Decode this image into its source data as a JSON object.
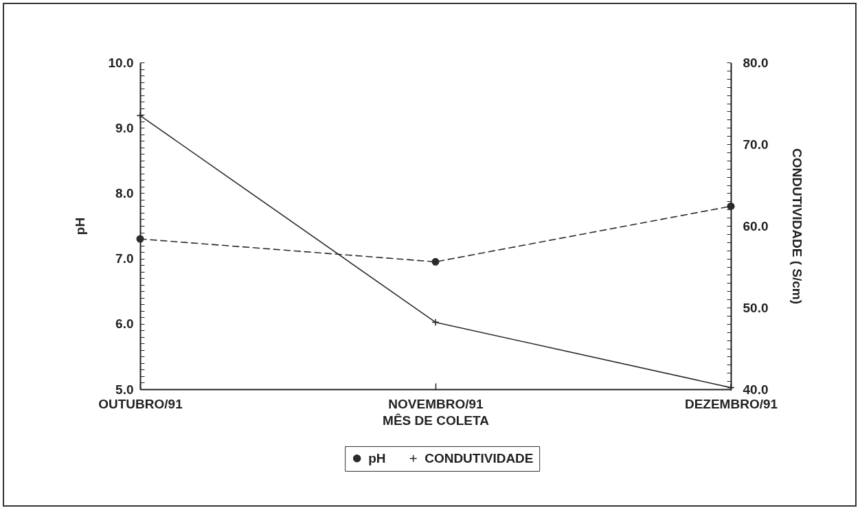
{
  "chart_data": {
    "type": "line",
    "xlabel": "MÊS DE COLETA",
    "ylabel": "pH",
    "y2label": "CONDUTIVIDADE ( S/cm)",
    "categories": [
      "OUTUBRO/91",
      "NOVEMBRO/91",
      "DEZEMBRO/91"
    ],
    "series": [
      {
        "name": "pH",
        "color": "#2b2b2b",
        "values": [
          7.3,
          6.95,
          7.8
        ],
        "marker": "circle",
        "line_style": "dashed"
      },
      {
        "name": "CONDUTIVIDADE",
        "color": "#2b2b2b",
        "values": [
          73.5,
          48.2,
          40.2
        ],
        "marker": "cross",
        "line_style": "solid",
        "axis": "y2"
      }
    ],
    "ylim": [
      5,
      10
    ],
    "yticks": [
      {
        "value": 5,
        "label": "5.0"
      },
      {
        "value": 5.1,
        "label": null
      },
      {
        "value": 5.2,
        "label": null
      },
      {
        "value": 5.3,
        "label": null
      },
      {
        "value": 5.4,
        "label": null
      },
      {
        "value": 5.5,
        "label": null
      },
      {
        "value": 5.6,
        "label": null
      },
      {
        "value": 5.7,
        "label": null
      },
      {
        "value": 5.8,
        "label": null
      },
      {
        "value": 5.9,
        "label": null
      },
      {
        "value": 6,
        "label": "6.0"
      },
      {
        "value": 6.1,
        "label": null
      },
      {
        "value": 6.2,
        "label": null
      },
      {
        "value": 6.3,
        "label": null
      },
      {
        "value": 6.4,
        "label": null
      },
      {
        "value": 6.5,
        "label": null
      },
      {
        "value": 6.6,
        "label": null
      },
      {
        "value": 6.7,
        "label": null
      },
      {
        "value": 6.8,
        "label": null
      },
      {
        "value": 6.9,
        "label": null
      },
      {
        "value": 7,
        "label": "7.0"
      },
      {
        "value": 7.1,
        "label": null
      },
      {
        "value": 7.2,
        "label": null
      },
      {
        "value": 7.3,
        "label": null
      },
      {
        "value": 7.4,
        "label": null
      },
      {
        "value": 7.5,
        "label": null
      },
      {
        "value": 7.6,
        "label": null
      },
      {
        "value": 7.7,
        "label": null
      },
      {
        "value": 7.8,
        "label": null
      },
      {
        "value": 7.9,
        "label": null
      },
      {
        "value": 8,
        "label": "8.0"
      },
      {
        "value": 8.1,
        "label": null
      },
      {
        "value": 8.2,
        "label": null
      },
      {
        "value": 8.3,
        "label": null
      },
      {
        "value": 8.4,
        "label": null
      },
      {
        "value": 8.5,
        "label": null
      },
      {
        "value": 8.6,
        "label": null
      },
      {
        "value": 8.7,
        "label": null
      },
      {
        "value": 8.8,
        "label": null
      },
      {
        "value": 8.9,
        "label": null
      },
      {
        "value": 9,
        "label": "9.0"
      },
      {
        "value": 9.1,
        "label": null
      },
      {
        "value": 9.2,
        "label": null
      },
      {
        "value": 9.3,
        "label": null
      },
      {
        "value": 9.4,
        "label": null
      },
      {
        "value": 9.5,
        "label": null
      },
      {
        "value": 9.6,
        "label": null
      },
      {
        "value": 9.7,
        "label": null
      },
      {
        "value": 9.8,
        "label": null
      },
      {
        "value": 9.9,
        "label": null
      },
      {
        "value": 10,
        "label": "10.0"
      }
    ],
    "y2lim": [
      40,
      80
    ],
    "y2ticks": [
      {
        "value": 40,
        "label": "40.0"
      },
      {
        "value": 41,
        "label": null
      },
      {
        "value": 42,
        "label": null
      },
      {
        "value": 43,
        "label": null
      },
      {
        "value": 44,
        "label": null
      },
      {
        "value": 45,
        "label": null
      },
      {
        "value": 46,
        "label": null
      },
      {
        "value": 47,
        "label": null
      },
      {
        "value": 48,
        "label": null
      },
      {
        "value": 49,
        "label": null
      },
      {
        "value": 50,
        "label": "50.0"
      },
      {
        "value": 51,
        "label": null
      },
      {
        "value": 52,
        "label": null
      },
      {
        "value": 53,
        "label": null
      },
      {
        "value": 54,
        "label": null
      },
      {
        "value": 55,
        "label": null
      },
      {
        "value": 56,
        "label": null
      },
      {
        "value": 57,
        "label": null
      },
      {
        "value": 58,
        "label": null
      },
      {
        "value": 59,
        "label": null
      },
      {
        "value": 60,
        "label": "60.0"
      },
      {
        "value": 61,
        "label": null
      },
      {
        "value": 62,
        "label": null
      },
      {
        "value": 63,
        "label": null
      },
      {
        "value": 64,
        "label": null
      },
      {
        "value": 65,
        "label": null
      },
      {
        "value": 66,
        "label": null
      },
      {
        "value": 67,
        "label": null
      },
      {
        "value": 68,
        "label": null
      },
      {
        "value": 69,
        "label": null
      },
      {
        "value": 70,
        "label": "70.0"
      },
      {
        "value": 71,
        "label": null
      },
      {
        "value": 72,
        "label": null
      },
      {
        "value": 73,
        "label": null
      },
      {
        "value": 74,
        "label": null
      },
      {
        "value": 75,
        "label": null
      },
      {
        "value": 76,
        "label": null
      },
      {
        "value": 77,
        "label": null
      },
      {
        "value": 78,
        "label": null
      },
      {
        "value": 79,
        "label": null
      },
      {
        "value": 80,
        "label": "80.0"
      }
    ],
    "grid": false,
    "legend": "bottom"
  }
}
